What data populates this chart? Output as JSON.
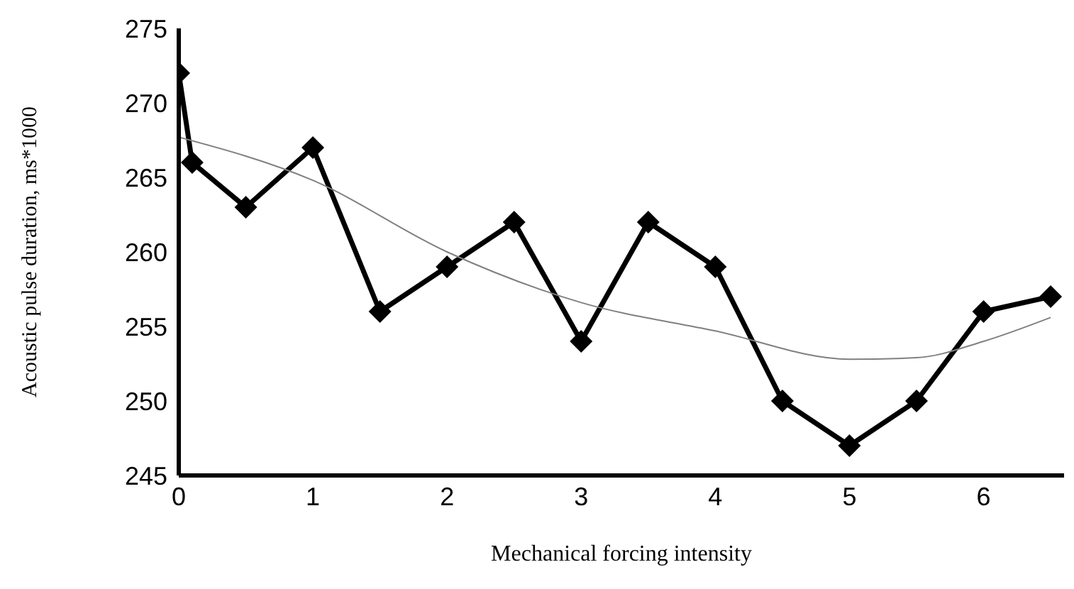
{
  "chart_data": {
    "type": "line",
    "xlabel": "Mechanical forcing intensity",
    "ylabel": "Acoustic pulse duration, ms*1000",
    "x": [
      0,
      0.1,
      0.5,
      1,
      1.5,
      2,
      2.5,
      3,
      3.5,
      4,
      4.5,
      5,
      5.5,
      6,
      6.5
    ],
    "series": [
      {
        "color": "#000000",
        "marker": "diamond",
        "values": [
          272,
          266,
          263,
          267,
          256,
          259,
          262,
          254,
          262,
          259,
          250,
          247,
          250,
          256,
          257
        ]
      },
      {
        "type": "line",
        "color": "#808080",
        "marker": "none",
        "x": [
          0,
          1,
          2,
          3,
          4,
          5,
          5.5,
          6,
          6.5
        ],
        "values": [
          267.7,
          264.8,
          260,
          256.6,
          254.7,
          252.8,
          252.9,
          254,
          255.6
        ]
      }
    ],
    "xlim": [
      0,
      6.6
    ],
    "xticks": [
      0,
      1,
      2,
      3,
      4,
      5,
      6
    ],
    "ylim": [
      245,
      275
    ],
    "yticks": [
      245,
      250,
      255,
      260,
      265,
      270,
      275
    ],
    "grid": false,
    "legend": false
  }
}
